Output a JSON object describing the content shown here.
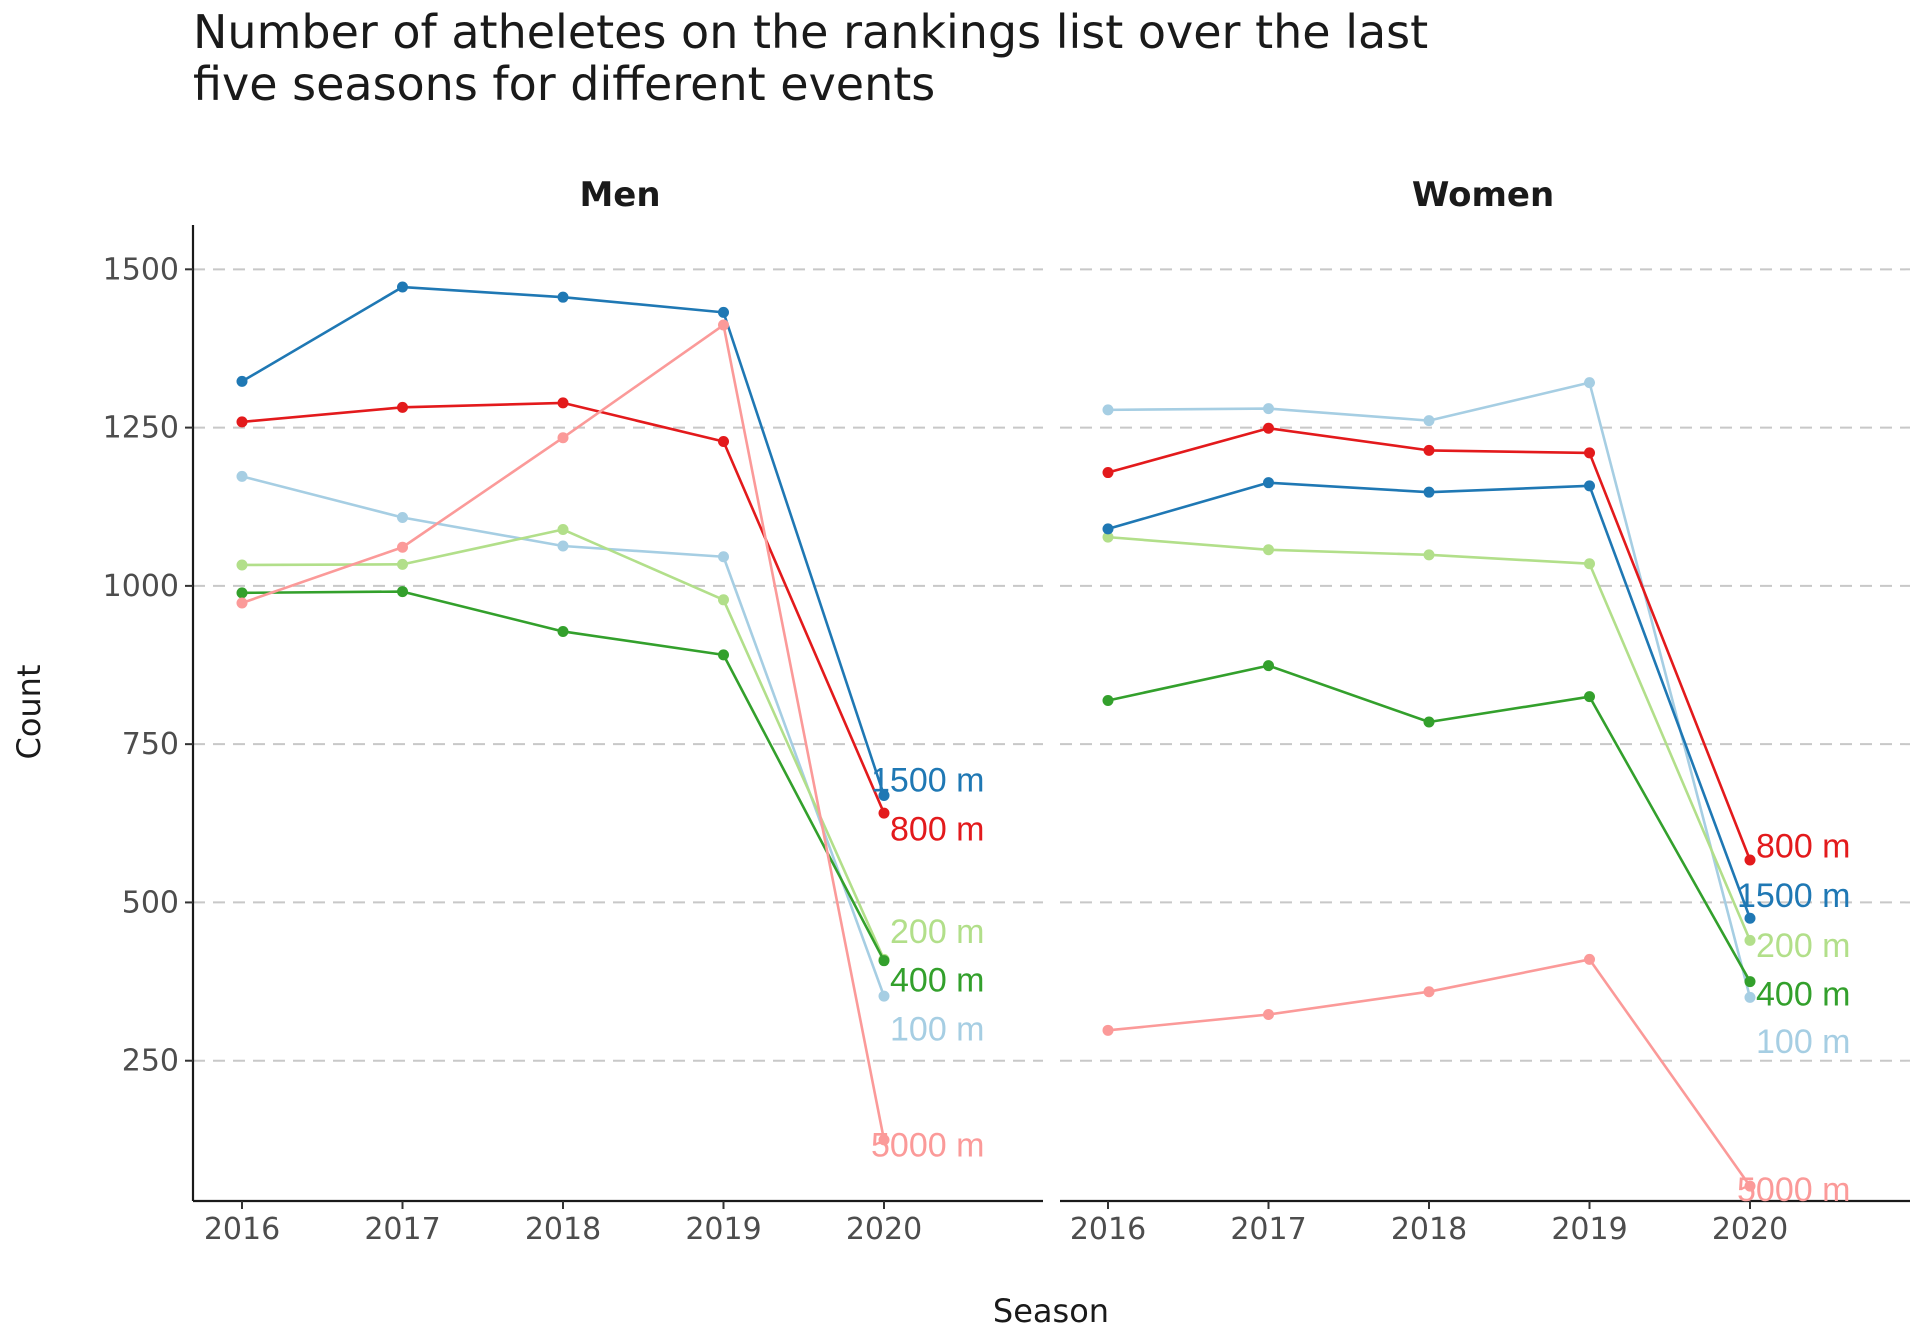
{
  "chart_data": {
    "type": "line",
    "title_lines": [
      "Number of atheletes on the rankings list over the last",
      "five seasons for different events"
    ],
    "xlabel": "Season",
    "ylabel": "Count",
    "x": [
      2016,
      2017,
      2018,
      2019,
      2020
    ],
    "yticks": [
      250,
      500,
      750,
      1000,
      1250,
      1500
    ],
    "ylim": [
      30,
      1570
    ],
    "grid": "horizontal dashed",
    "legend": "none (direct labels at line ends)",
    "colors": {
      "100 m": "#a6cee3",
      "200 m": "#b2df8a",
      "400 m": "#33a02c",
      "800 m": "#e31a1c",
      "1500 m": "#1f78b4",
      "5000 m": "#fb9a99"
    },
    "panels": [
      {
        "name": "Men",
        "series": [
          {
            "name": "100 m",
            "values": [
              1173,
              1108,
              1063,
              1046,
              352
            ]
          },
          {
            "name": "200 m",
            "values": [
              1033,
              1034,
              1089,
              978,
              410
            ]
          },
          {
            "name": "400 m",
            "values": [
              989,
              991,
              928,
              891,
              408
            ]
          },
          {
            "name": "800 m",
            "values": [
              1259,
              1282,
              1289,
              1228,
              641
            ]
          },
          {
            "name": "1500 m",
            "values": [
              1323,
              1472,
              1456,
              1432,
              669
            ]
          },
          {
            "name": "5000 m",
            "values": [
              973,
              1061,
              1234,
              1412,
              125
            ]
          }
        ],
        "labels": [
          {
            "text": "1500 m",
            "y": 694,
            "color": "#1f78b4"
          },
          {
            "text": "800 m",
            "y": 617,
            "color": "#e31a1c"
          },
          {
            "text": "200 m",
            "y": 455,
            "color": "#b2df8a"
          },
          {
            "text": "400 m",
            "y": 378,
            "color": "#33a02c"
          },
          {
            "text": "100 m",
            "y": 301,
            "color": "#a6cee3"
          },
          {
            "text": "5000 m",
            "y": 118,
            "color": "#fb9a99"
          }
        ]
      },
      {
        "name": "Women",
        "series": [
          {
            "name": "100 m",
            "values": [
              1278,
              1280,
              1261,
              1321,
              350
            ]
          },
          {
            "name": "200 m",
            "values": [
              1077,
              1057,
              1049,
              1035,
              440
            ]
          },
          {
            "name": "400 m",
            "values": [
              819,
              874,
              785,
              825,
              375
            ]
          },
          {
            "name": "800 m",
            "values": [
              1179,
              1249,
              1214,
              1210,
              567
            ]
          },
          {
            "name": "1500 m",
            "values": [
              1090,
              1163,
              1148,
              1158,
              475
            ]
          },
          {
            "name": "5000 m",
            "values": [
              298,
              323,
              359,
              410,
              52
            ]
          }
        ],
        "labels": [
          {
            "text": "800 m",
            "y": 590,
            "color": "#e31a1c"
          },
          {
            "text": "1500 m",
            "y": 512,
            "color": "#1f78b4"
          },
          {
            "text": "200 m",
            "y": 433,
            "color": "#b2df8a"
          },
          {
            "text": "400 m",
            "y": 356,
            "color": "#33a02c"
          },
          {
            "text": "100 m",
            "y": 281,
            "color": "#a6cee3"
          },
          {
            "text": "5000 m",
            "y": 47,
            "color": "#fb9a99"
          }
        ]
      }
    ]
  }
}
